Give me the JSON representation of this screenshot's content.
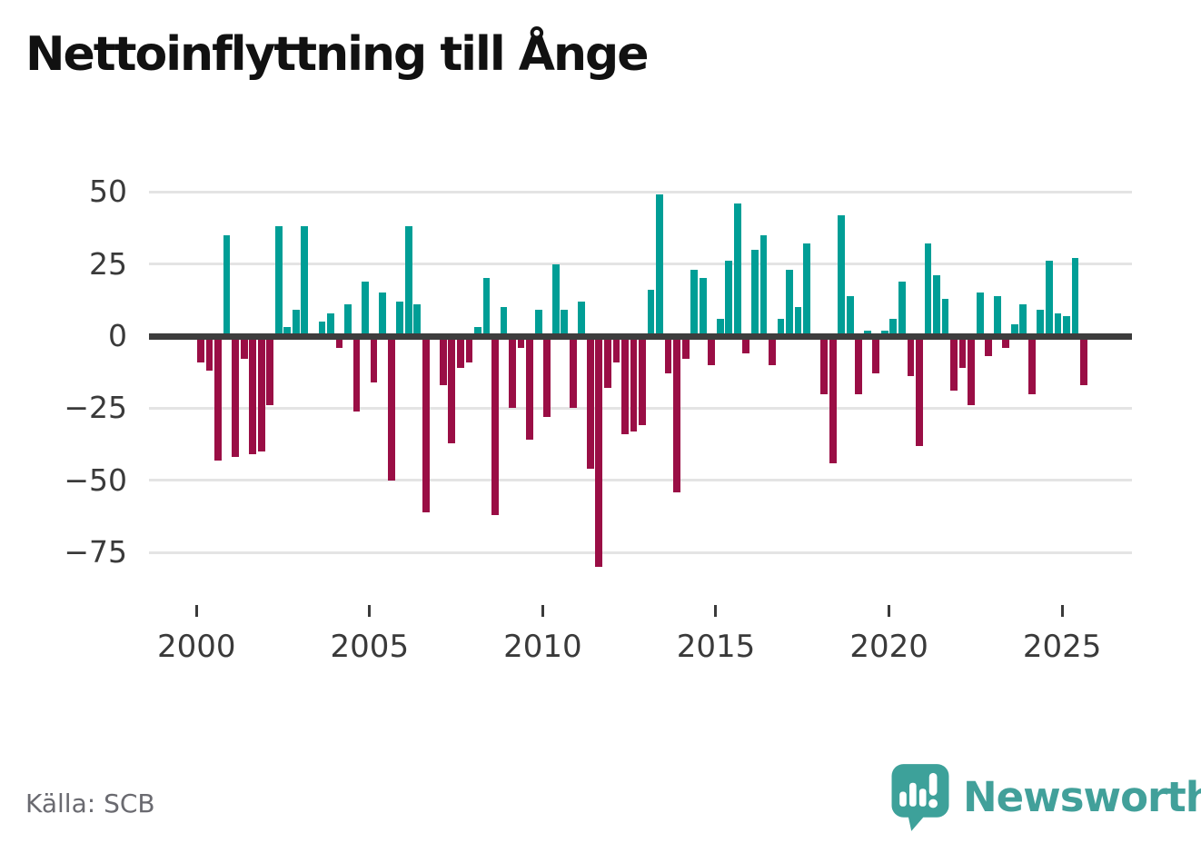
{
  "title": "Nettoinflyttning till Ånge",
  "source": "Källa: SCB",
  "logo": {
    "text": "Newsworthy"
  },
  "chart_data": {
    "type": "bar",
    "title": "Nettoinflyttning till Ånge",
    "period": "quarterly",
    "start_year": 2000,
    "start_quarter": 1,
    "end_year": 2025,
    "end_quarter": 3,
    "xlabel": "",
    "ylabel": "",
    "ylim": [
      -85,
      55
    ],
    "grid": "horizontal",
    "legend": "none",
    "y_ticks": [
      50,
      25,
      0,
      -25,
      -50,
      -75
    ],
    "y_tick_labels": [
      "50",
      "25",
      "0",
      "−25",
      "−50",
      "−75"
    ],
    "x_ticks_years": [
      2000,
      2005,
      2010,
      2015,
      2020,
      2025
    ],
    "x_tick_labels": [
      "2000",
      "2005",
      "2010",
      "2015",
      "2020",
      "2025"
    ],
    "colors": {
      "positive": "#009e96",
      "negative": "#9a0e45"
    },
    "values": [
      -9,
      -12,
      -43,
      35,
      -42,
      -8,
      -41,
      -40,
      -24,
      38,
      3,
      9,
      38,
      0,
      5,
      8,
      -4,
      11,
      -26,
      19,
      -16,
      15,
      -50,
      12,
      38,
      11,
      -61,
      1,
      -17,
      -37,
      -11,
      -9,
      3,
      20,
      -62,
      10,
      -25,
      -4,
      -36,
      9,
      -28,
      25,
      9,
      -25,
      12,
      -46,
      -80,
      -18,
      -9,
      -34,
      -33,
      -31,
      16,
      49,
      -13,
      -54,
      -8,
      23,
      20,
      -10,
      6,
      26,
      46,
      -6,
      30,
      35,
      -10,
      6,
      23,
      10,
      32,
      0,
      -20,
      -44,
      42,
      14,
      -20,
      2,
      -13,
      2,
      6,
      19,
      -14,
      -38,
      32,
      21,
      13,
      -19,
      -11,
      -24,
      15,
      -7,
      14,
      -4,
      4,
      11,
      -20,
      9,
      26,
      8,
      7,
      27,
      -17
    ]
  }
}
